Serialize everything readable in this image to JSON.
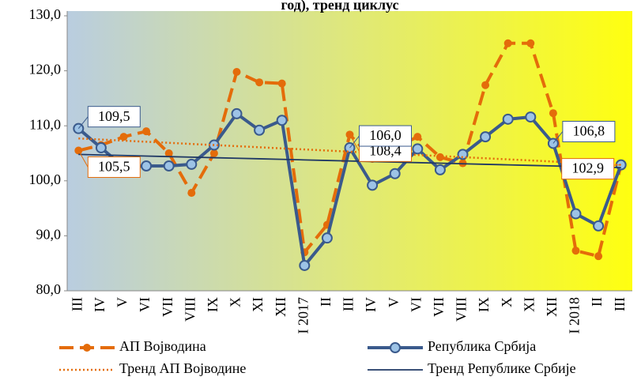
{
  "chart_data": {
    "type": "line",
    "title": "год), тренд циклус",
    "categories": [
      "III",
      "IV",
      "V",
      "VI",
      "VII",
      "VIII",
      "IX",
      "X",
      "XI",
      "XII",
      "I 2017",
      "II",
      "III",
      "IV",
      "V",
      "VI",
      "VII",
      "VIII",
      "IX",
      "X",
      "XI",
      "XII",
      "I 2018",
      "II",
      "III"
    ],
    "ylim": [
      80,
      130
    ],
    "yticks": [
      {
        "value": 80,
        "label": "80,0"
      },
      {
        "value": 90,
        "label": "90,0"
      },
      {
        "value": 100,
        "label": "100,0"
      },
      {
        "value": 110,
        "label": "110,0"
      },
      {
        "value": 120,
        "label": "120,0"
      },
      {
        "value": 130,
        "label": "130,0"
      }
    ],
    "series": [
      {
        "name": "АП Војводина",
        "color": "#e46c0a",
        "line_style": "dashed",
        "markers": true,
        "values": [
          105.5,
          106.5,
          108.0,
          109.0,
          105.0,
          97.8,
          105.0,
          119.8,
          117.9,
          117.7,
          87.0,
          92.0,
          108.4,
          104.0,
          106.0,
          108.0,
          104.3,
          103.2,
          117.4,
          125.0,
          125.0,
          112.3,
          87.3,
          86.3,
          102.9
        ],
        "value_labels": [
          "105,5",
          null,
          null,
          null,
          null,
          null,
          null,
          null,
          null,
          null,
          null,
          null,
          "108,4",
          null,
          null,
          null,
          null,
          null,
          null,
          null,
          null,
          null,
          null,
          null,
          "102,9"
        ]
      },
      {
        "name": "Република Србија",
        "color": "#3a5a8c",
        "line_style": "solid",
        "markers": true,
        "values": [
          109.5,
          106.0,
          102.5,
          102.7,
          102.7,
          103.0,
          106.5,
          112.2,
          109.2,
          111.0,
          84.6,
          89.6,
          106.0,
          99.2,
          101.3,
          105.8,
          102.0,
          104.8,
          108.0,
          111.2,
          111.6,
          106.8,
          94.0,
          91.8,
          102.9
        ],
        "value_labels": [
          "109,5",
          null,
          null,
          null,
          null,
          null,
          null,
          null,
          null,
          null,
          null,
          null,
          "106,0",
          null,
          null,
          null,
          null,
          null,
          null,
          null,
          null,
          "106,8",
          null,
          null,
          null
        ]
      },
      {
        "name": "Тренд АП Војводине",
        "color": "#e46c0a",
        "line_style": "dotted",
        "markers": false,
        "values": [
          107.7,
          107.5,
          107.3,
          107.1,
          106.9,
          106.7,
          106.5,
          106.3,
          106.1,
          105.9,
          105.7,
          105.5,
          105.3,
          105.1,
          104.9,
          104.7,
          104.5,
          104.3,
          104.1,
          103.9,
          103.7,
          103.5,
          103.3,
          103.1,
          102.9
        ]
      },
      {
        "name": "Тренд Републике Србије",
        "color": "#1f3864",
        "line_style": "solid",
        "markers": false,
        "values": [
          104.8,
          104.7,
          104.6,
          104.5,
          104.4,
          104.3,
          104.2,
          104.1,
          104.0,
          103.9,
          103.8,
          103.7,
          103.6,
          103.5,
          103.4,
          103.3,
          103.2,
          103.1,
          103.0,
          102.9,
          102.8,
          102.7,
          102.6,
          102.5,
          102.4
        ]
      }
    ]
  }
}
